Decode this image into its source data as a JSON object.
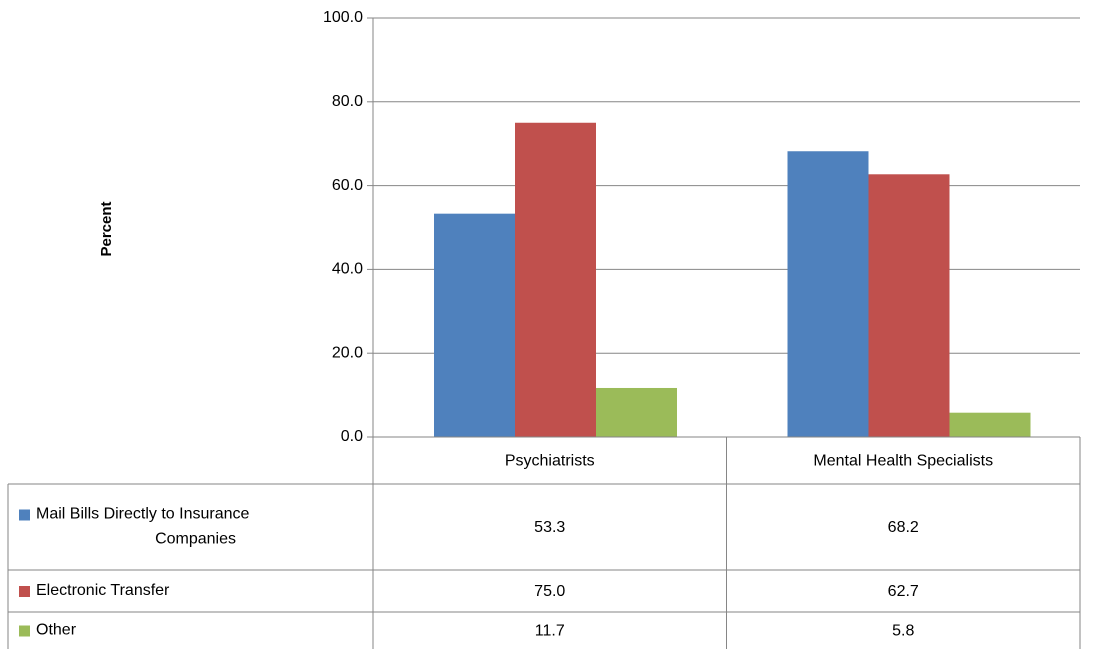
{
  "chart_data": {
    "type": "bar",
    "title": "",
    "xlabel": "",
    "ylabel": "Percent",
    "ylim": [
      0,
      100
    ],
    "yticks": [
      "0.0",
      "20.0",
      "40.0",
      "60.0",
      "80.0",
      "100.0"
    ],
    "grid": true,
    "legend": "data-table",
    "categories": [
      "Psychiatrists",
      "Mental Health Specialists"
    ],
    "series": [
      {
        "name": "Mail Bills Directly to Insurance Companies",
        "name_lines": [
          "Mail Bills Directly to Insurance",
          "Companies"
        ],
        "color": "#4f81bd",
        "values": [
          53.3,
          68.2
        ],
        "labels": [
          "53.3",
          "68.2"
        ]
      },
      {
        "name": "Electronic Transfer",
        "name_lines": [
          "Electronic Transfer"
        ],
        "color": "#c0504d",
        "values": [
          75.0,
          62.7
        ],
        "labels": [
          "75.0",
          "62.7"
        ]
      },
      {
        "name": "Other",
        "name_lines": [
          "Other"
        ],
        "color": "#9bbb59",
        "values": [
          11.7,
          5.8
        ],
        "labels": [
          "11.7",
          "5.8"
        ]
      }
    ]
  }
}
